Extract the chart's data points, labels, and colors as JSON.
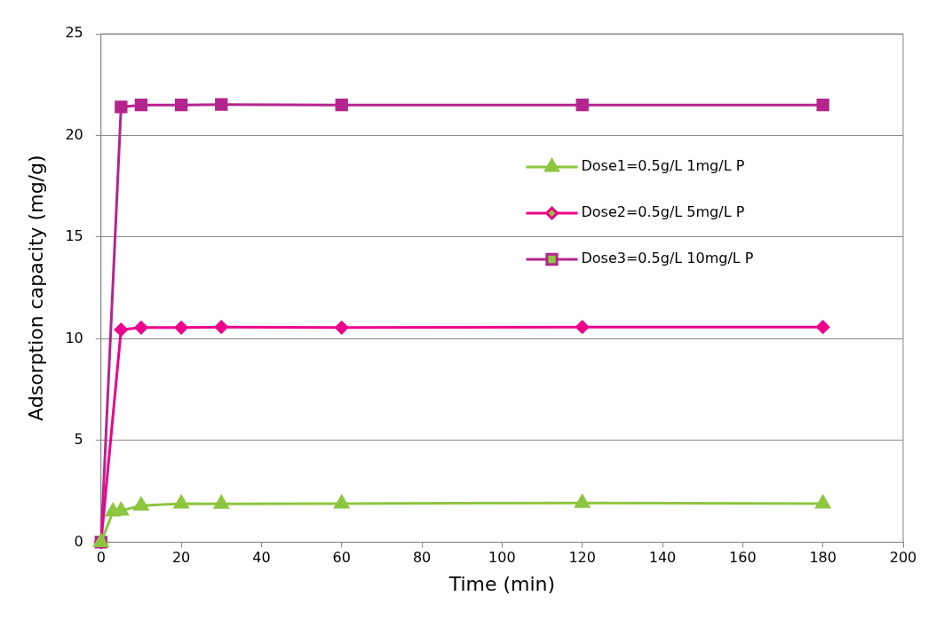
{
  "chart_data": {
    "type": "line",
    "xlabel": "Time (min)",
    "ylabel": "Adsorption capacity (mg/g)",
    "x": [
      0,
      3,
      5,
      10,
      20,
      30,
      60,
      120,
      180
    ],
    "series": [
      {
        "name": "Dose1=0.5g/L 1mg/L P",
        "color": "#8dc63f",
        "marker": "triangle",
        "values": [
          0,
          1.5,
          1.55,
          1.8,
          1.9,
          1.88,
          1.9,
          1.93,
          1.9
        ]
      },
      {
        "name": "Dose2=0.5g/L 5mg/L P",
        "color": "#ec008c",
        "marker": "diamond",
        "x": [
          0,
          5,
          10,
          20,
          30,
          60,
          120,
          180
        ],
        "values": [
          0,
          10.45,
          10.55,
          10.55,
          10.58,
          10.55,
          10.58,
          10.58
        ]
      },
      {
        "name": "Dose3=0.5g/L 10mg/L P",
        "color": "#b5258f",
        "marker": "square",
        "x": [
          0,
          5,
          10,
          20,
          30,
          60,
          120,
          180
        ],
        "values": [
          0,
          21.4,
          21.5,
          21.5,
          21.52,
          21.5,
          21.5,
          21.5
        ]
      }
    ],
    "xlim": [
      0,
      200
    ],
    "xticks": [
      0,
      20,
      40,
      60,
      80,
      100,
      120,
      140,
      160,
      180,
      200
    ],
    "ylim": [
      0,
      25
    ],
    "yticks": [
      0,
      5,
      10,
      15,
      20,
      25
    ],
    "grid": "y",
    "legend": "right",
    "line_style": "solid"
  }
}
